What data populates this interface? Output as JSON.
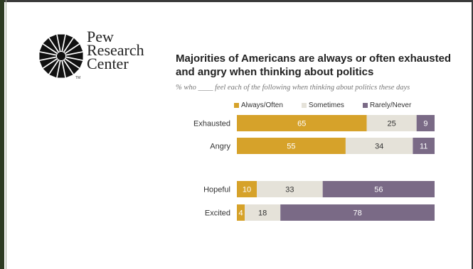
{
  "logo": {
    "lines": [
      "Pew",
      "Research",
      "Center"
    ],
    "tm": "TM"
  },
  "chart_data": {
    "type": "bar",
    "orientation": "horizontal",
    "stacked": true,
    "title": "Majorities of Americans are always or often exhausted and angry when thinking about politics",
    "subtitle": "% who ____ feel each of the following when thinking about politics these days",
    "categories": [
      "Exhausted",
      "Angry",
      "Hopeful",
      "Excited"
    ],
    "series": [
      {
        "name": "Always/Often",
        "color": "#d6a22a",
        "label_color": "#ffffff",
        "values": [
          65,
          55,
          10,
          4
        ]
      },
      {
        "name": "Sometimes",
        "color": "#e5e2d9",
        "label_color": "#333333",
        "values": [
          25,
          34,
          33,
          18
        ]
      },
      {
        "name": "Rarely/Never",
        "color": "#7a6a86",
        "label_color": "#ffffff",
        "values": [
          9,
          11,
          56,
          78
        ]
      }
    ],
    "xlim": [
      0,
      100
    ],
    "grid": false,
    "legend_placement": "top"
  }
}
